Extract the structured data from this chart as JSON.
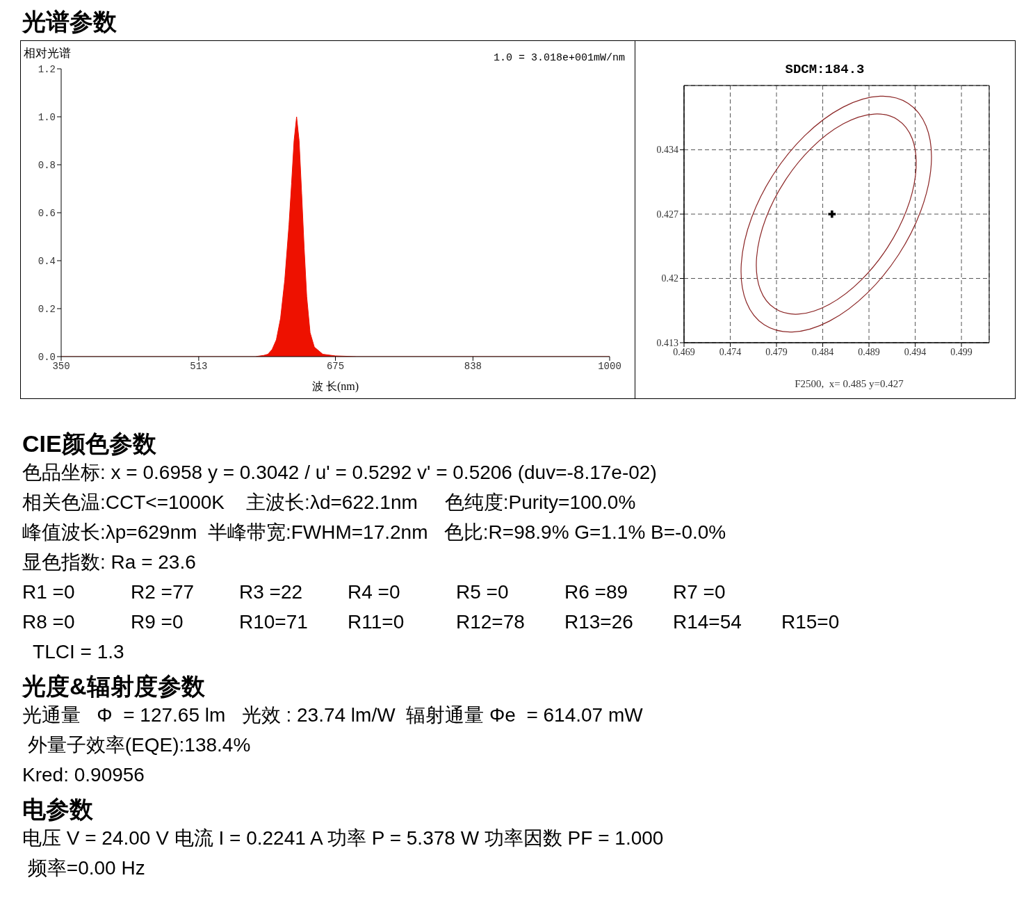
{
  "chart_data": [
    {
      "type": "other",
      "title": "光谱参数"
    },
    {
      "type": "area",
      "ylabel": "相对光谱",
      "xlabel": "波 长(nm)",
      "annotations": [
        "1.0 = 3.018e+001mW/nm"
      ],
      "xlim": [
        350,
        1000
      ],
      "xticks": [
        350,
        513,
        675,
        838,
        1000
      ],
      "ylim": [
        0,
        1.2
      ],
      "yticks": [
        {
          "value": 0,
          "label": "0.0"
        },
        {
          "value": 0.2,
          "label": "0.2"
        },
        {
          "value": 0.4,
          "label": "0.4"
        },
        {
          "value": 0.6,
          "label": "0.6"
        },
        {
          "value": 0.8,
          "label": "0.8"
        },
        {
          "value": 1,
          "label": "1.0"
        },
        {
          "value": 1.2,
          "label": "1.2"
        }
      ],
      "grid": false,
      "legend": false,
      "series": [
        {
          "color": "#ee1100",
          "x": [
            350,
            580,
            590,
            595,
            600,
            605,
            610,
            615,
            620,
            623,
            626,
            629,
            632,
            635,
            638,
            641,
            645,
            650,
            660,
            675,
            700,
            1000
          ],
          "values": [
            0,
            0,
            0.005,
            0.01,
            0.03,
            0.07,
            0.16,
            0.32,
            0.55,
            0.72,
            0.9,
            1.0,
            0.9,
            0.68,
            0.45,
            0.25,
            0.1,
            0.04,
            0.01,
            0.003,
            0,
            0
          ]
        }
      ]
    },
    {
      "type": "scatter",
      "title": "SDCM:184.3",
      "annotations": [
        "F2500,  x= 0.485 y=0.427"
      ],
      "xlim": [
        0.469,
        0.502
      ],
      "ylim": [
        0.413,
        0.441
      ],
      "xticks": [
        0.469,
        0.474,
        0.479,
        0.484,
        0.489,
        0.494,
        0.499
      ],
      "yticks": [
        0.413,
        0.42,
        0.427,
        0.434
      ],
      "grid": true,
      "legend": false,
      "series": [
        {
          "type": "scatter",
          "marker": "cross",
          "color": "#000000",
          "x": [
            0.485
          ],
          "values": [
            0.427
          ]
        }
      ]
    },
    {
      "type": "other",
      "title": "CIE颜色参数",
      "annotations": [
        "色品坐标: x = 0.6958 y = 0.3042 / u' = 0.5292 v' = 0.5206 (duv=-8.17e-02)",
        "相关色温:CCT<=1000K    主波长:λd=622.1nm     色纯度:Purity=100.0%",
        "峰值波长:λp=629nm  半峰带宽:FWHM=17.2nm   色比:R=98.9% G=1.1% B=-0.0%",
        "显色指数: Ra = 23.6",
        "R1 =0\tR2 =77\tR3 =22\tR4 =0\tR5 =0\tR6 =89\tR7 =0",
        "R8 =0\tR9 =0\tR10=71\tR11=0\tR12=78\tR13=26\tR14=54\tR15=0",
        "  TLCI = 1.3"
      ]
    },
    {
      "type": "other",
      "title": "光度&辐射度参数",
      "annotations": [
        "光通量   Φ  = 127.65 lm   光效 : 23.74 lm/W  辐射通量 Φe  = 614.07 mW",
        " 外量子效率(EQE):138.4%",
        "Kred: 0.90956"
      ]
    },
    {
      "type": "other",
      "title": "电参数",
      "annotations": [
        "电压 V = 24.00 V 电流 I = 0.2241 A 功率 P = 5.378 W 功率因数 PF = 1.000",
        " 频率=0.00 Hz"
      ]
    }
  ]
}
